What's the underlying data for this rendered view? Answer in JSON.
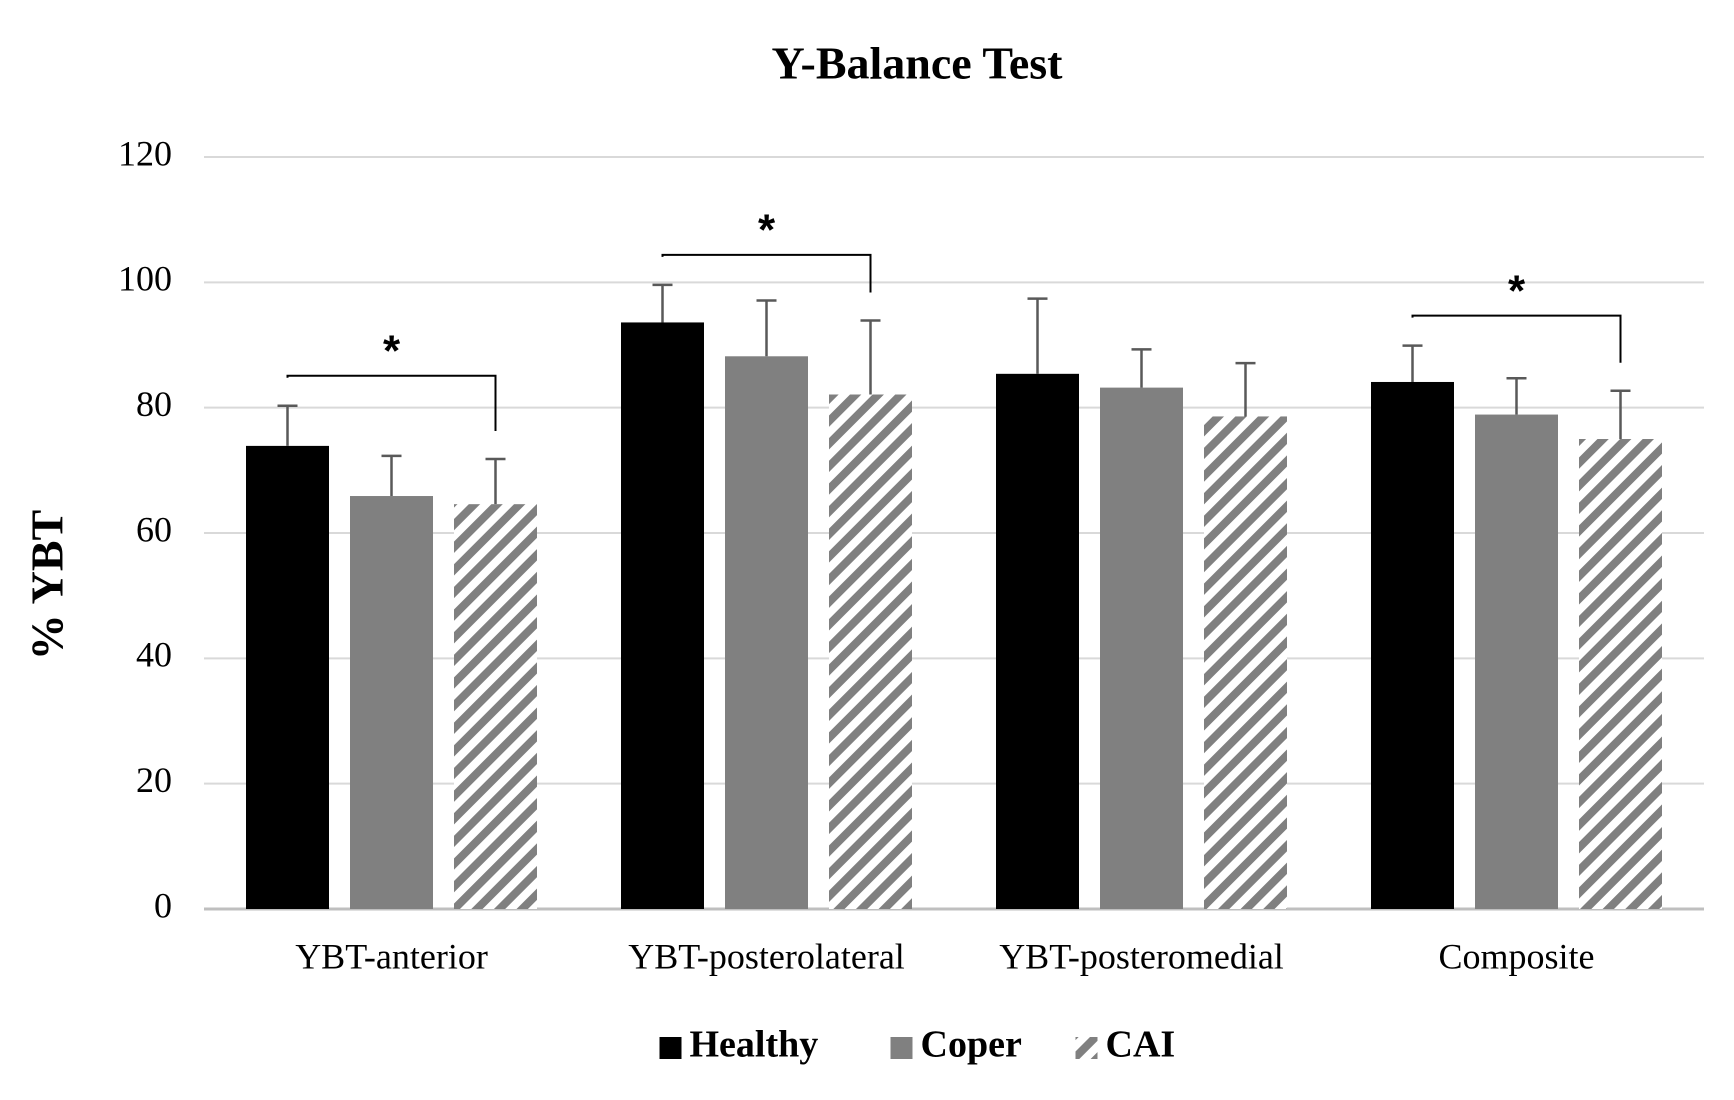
{
  "chart_data": {
    "type": "bar",
    "title": "Y-Balance Test",
    "y_label": "% YBT",
    "categories": [
      "YBT-anterior",
      "YBT-posterolateral",
      "YBT-posteromedial",
      "Composite"
    ],
    "series": [
      {
        "name": "Healthy",
        "color": "#000000",
        "pattern": "solid",
        "values": [
          73.9,
          93.6,
          85.4,
          84.1
        ],
        "errors": [
          6.4,
          6.0,
          12.0,
          5.8
        ]
      },
      {
        "name": "Coper",
        "color": "#808080",
        "pattern": "solid",
        "values": [
          65.9,
          88.2,
          83.2,
          78.9
        ],
        "errors": [
          6.4,
          8.9,
          6.1,
          5.8
        ]
      },
      {
        "name": "CAI",
        "color": "#808080",
        "pattern": "hatch",
        "values": [
          64.6,
          82.1,
          78.6,
          75.0
        ],
        "errors": [
          7.2,
          11.8,
          8.5,
          7.7
        ]
      }
    ],
    "annotations": [
      {
        "label": "*",
        "category": 0
      },
      {
        "label": "*",
        "category": 1
      },
      {
        "label": "*",
        "category": 3
      }
    ],
    "ylim": [
      0,
      120
    ],
    "yticks": [
      0,
      20,
      40,
      60,
      80,
      100,
      120
    ],
    "grid": true,
    "legend": "bottom"
  }
}
